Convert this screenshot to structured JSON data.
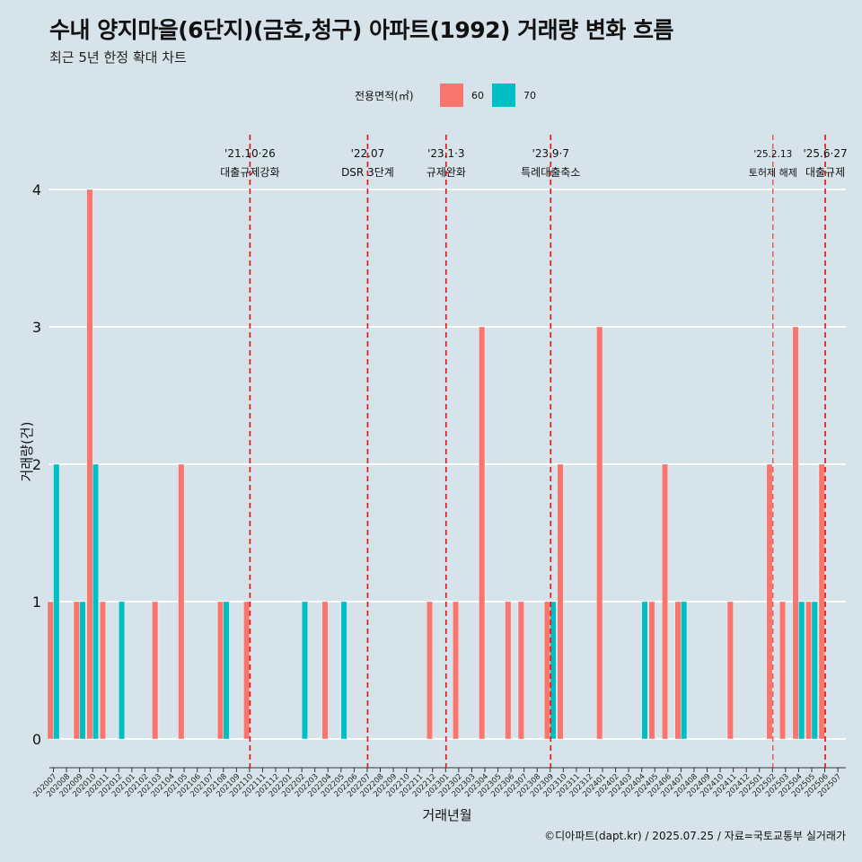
{
  "title": "수내 양지마을(6단지)(금호,청구) 아파트(1992) 거래량 변화 흐름",
  "subtitle": "최근 5년 한정 확대 차트",
  "caption": "©디아파트(dapt.kr) / 2025.07.25 / 자료=국토교통부 실거래가",
  "legend": {
    "title": "전용면적(㎡)",
    "items": [
      {
        "label": "60",
        "color": "#f8766d"
      },
      {
        "label": "70",
        "color": "#00bfc4"
      }
    ]
  },
  "chart_data": {
    "type": "bar",
    "xlabel": "거래년월",
    "ylabel": "거래량(건)",
    "ylim": [
      0,
      4
    ],
    "yticks": [
      0,
      1,
      2,
      3,
      4
    ],
    "grid": true,
    "legend_position": "top",
    "categories": [
      "202007",
      "202008",
      "202009",
      "202010",
      "202011",
      "202012",
      "202101",
      "202102",
      "202103",
      "202104",
      "202105",
      "202106",
      "202107",
      "202108",
      "202109",
      "202110",
      "202111",
      "202112",
      "202201",
      "202202",
      "202203",
      "202204",
      "202205",
      "202206",
      "202207",
      "202208",
      "202209",
      "202210",
      "202211",
      "202212",
      "202301",
      "202302",
      "202303",
      "202304",
      "202305",
      "202306",
      "202307",
      "202308",
      "202309",
      "202310",
      "202311",
      "202312",
      "202401",
      "202402",
      "202403",
      "202404",
      "202405",
      "202406",
      "202407",
      "202408",
      "202409",
      "202410",
      "202411",
      "202412",
      "202501",
      "202502",
      "202503",
      "202504",
      "202505",
      "202506",
      "202507"
    ],
    "series": [
      {
        "name": "60",
        "color": "#f8766d",
        "values": [
          1,
          0,
          1,
          4,
          1,
          0,
          0,
          0,
          1,
          0,
          2,
          0,
          0,
          1,
          0,
          1,
          0,
          0,
          0,
          0,
          0,
          1,
          0,
          0,
          0,
          0,
          0,
          0,
          0,
          1,
          0,
          1,
          0,
          3,
          0,
          1,
          1,
          0,
          1,
          2,
          0,
          0,
          3,
          0,
          0,
          0,
          1,
          2,
          1,
          0,
          0,
          0,
          1,
          0,
          0,
          2,
          1,
          3,
          1,
          2,
          0
        ]
      },
      {
        "name": "70",
        "color": "#00bfc4",
        "values": [
          2,
          0,
          1,
          2,
          0,
          1,
          0,
          0,
          0,
          0,
          0,
          0,
          0,
          1,
          0,
          0,
          0,
          0,
          0,
          1,
          0,
          0,
          1,
          0,
          0,
          0,
          0,
          0,
          0,
          0,
          0,
          0,
          0,
          0,
          0,
          0,
          0,
          0,
          1,
          0,
          0,
          0,
          0,
          0,
          0,
          1,
          0,
          0,
          1,
          0,
          0,
          0,
          0,
          0,
          0,
          0,
          0,
          1,
          1,
          0,
          0
        ]
      }
    ],
    "annotations": [
      {
        "x": "202110",
        "date": "'21.10·26",
        "label": "대출규제강화",
        "dash": "long"
      },
      {
        "x": "202207",
        "date": "'22.07",
        "label": "DSR 3단계",
        "dash": "long"
      },
      {
        "x": "202301",
        "date": "'23.1·3",
        "label": "규제완화",
        "dash": "long"
      },
      {
        "x": "202309",
        "date": "'23.9·7",
        "label": "특례대출축소",
        "dash": "long"
      },
      {
        "x": "202502",
        "date": "'25.2.13",
        "label": "토허제 해제",
        "dash": "short"
      },
      {
        "x": "202506",
        "date": "'25.6·27",
        "label": "대출규제",
        "dash": "long"
      }
    ]
  }
}
